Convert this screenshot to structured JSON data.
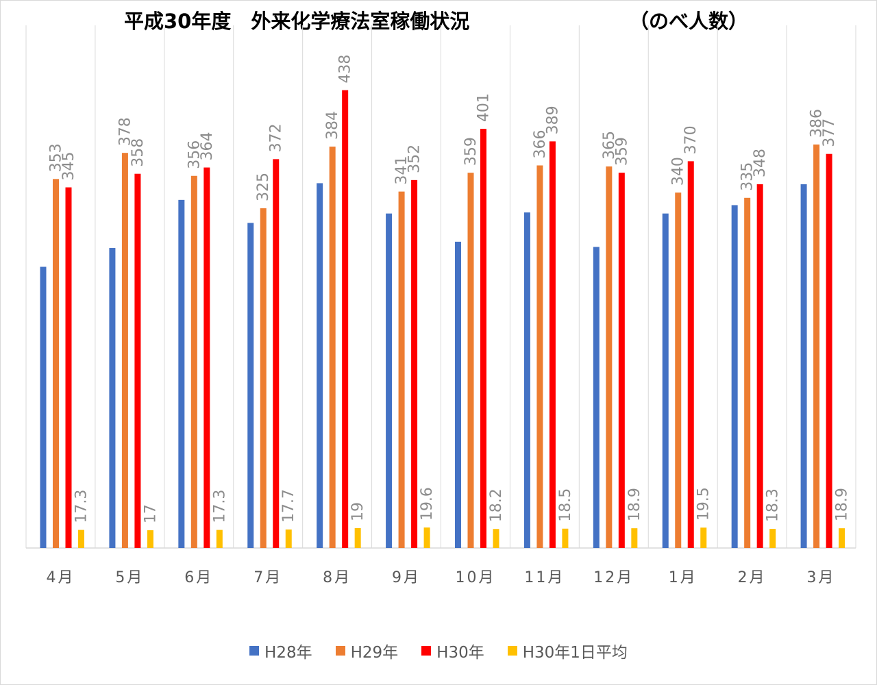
{
  "chart_data": {
    "type": "bar",
    "title": "平成30年度　外来化学療法室稼働状況",
    "subtitle": "（のべ人数）",
    "categories": [
      "4月",
      "5月",
      "6月",
      "7月",
      "8月",
      "9月",
      "10月",
      "11月",
      "12月",
      "1月",
      "2月",
      "3月"
    ],
    "series": [
      {
        "name": "H28年",
        "color": "#4472c4",
        "values": [
          269,
          287,
          333,
          311,
          349,
          320,
          293,
          321,
          288,
          320,
          328,
          348
        ],
        "labels_shown": false
      },
      {
        "name": "H29年",
        "color": "#ed7d31",
        "values": [
          353,
          378,
          356,
          325,
          384,
          341,
          359,
          366,
          365,
          340,
          335,
          386
        ],
        "labels_shown": true
      },
      {
        "name": "H30年",
        "color": "#ff0000",
        "values": [
          345,
          358,
          364,
          372,
          438,
          352,
          401,
          389,
          359,
          370,
          348,
          377
        ],
        "labels_shown": true
      },
      {
        "name": "H30年1日平均",
        "color": "#ffc000",
        "values": [
          17.3,
          17,
          17.3,
          17.7,
          19,
          19.6,
          18.2,
          18.5,
          18.9,
          19.5,
          18.3,
          18.9
        ],
        "labels_shown": true
      }
    ],
    "ylim": [
      0,
      500
    ],
    "grid": "vertical-category-lines",
    "legend_position": "bottom",
    "xlabel": "",
    "ylabel": ""
  }
}
